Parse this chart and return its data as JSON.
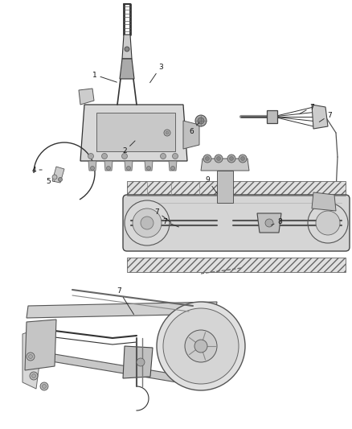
{
  "bg_color": "#ffffff",
  "fig_width": 4.38,
  "fig_height": 5.33,
  "dpi": 100,
  "line_color": "#333333",
  "label_color": "#111111"
}
